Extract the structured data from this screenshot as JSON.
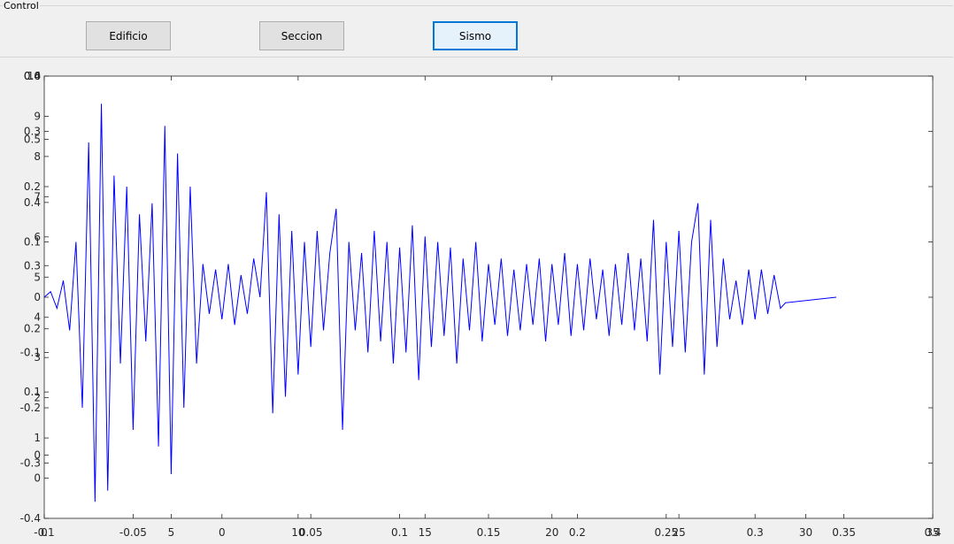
{
  "panel": {
    "title": "Control",
    "buttons": [
      "Edificio",
      "Seccion",
      "Sismo"
    ],
    "focused_button": 2
  },
  "chart_data": [
    {
      "type": "line",
      "xlim": [
        0,
        35
      ],
      "xticks": [
        0,
        5,
        10,
        15,
        20,
        25,
        30,
        35
      ],
      "ylim": [
        -0.4,
        0.4
      ],
      "yticks": [
        -0.4,
        -0.3,
        -0.2,
        -0.1,
        0,
        0.1,
        0.2,
        0.3,
        0.4
      ],
      "box": true,
      "x": [
        0,
        0.25,
        0.5,
        0.75,
        1,
        1.25,
        1.5,
        1.75,
        2,
        2.25,
        2.5,
        2.75,
        3,
        3.25,
        3.5,
        3.75,
        4,
        4.25,
        4.5,
        4.75,
        5,
        5.25,
        5.5,
        5.75,
        6,
        6.25,
        6.5,
        6.75,
        7,
        7.25,
        7.5,
        7.75,
        8,
        8.25,
        8.5,
        8.75,
        9,
        9.25,
        9.5,
        9.75,
        10,
        10.25,
        10.5,
        10.75,
        11,
        11.25,
        11.5,
        11.75,
        12,
        12.25,
        12.5,
        12.75,
        13,
        13.25,
        13.5,
        13.75,
        14,
        14.25,
        14.5,
        14.75,
        15,
        15.25,
        15.5,
        15.75,
        16,
        16.25,
        16.5,
        16.75,
        17,
        17.25,
        17.5,
        17.75,
        18,
        18.25,
        18.5,
        18.75,
        19,
        19.25,
        19.5,
        19.75,
        20,
        20.25,
        20.5,
        20.75,
        21,
        21.25,
        21.5,
        21.75,
        22,
        22.25,
        22.5,
        22.75,
        23,
        23.25,
        23.5,
        23.75,
        24,
        24.25,
        24.5,
        24.75,
        25,
        25.25,
        25.5,
        25.75,
        26,
        26.25,
        26.5,
        26.75,
        27,
        27.25,
        27.5,
        27.75,
        28,
        28.25,
        28.5,
        28.75,
        29,
        29.2,
        31.2
      ],
      "series": [
        {
          "color": "#0000ff",
          "values": [
            0,
            0.01,
            -0.02,
            0.03,
            -0.06,
            0.1,
            -0.2,
            0.28,
            -0.37,
            0.35,
            -0.35,
            0.22,
            -0.12,
            0.2,
            -0.24,
            0.15,
            -0.08,
            0.17,
            -0.27,
            0.31,
            -0.32,
            0.26,
            -0.2,
            0.2,
            -0.12,
            0.06,
            -0.03,
            0.05,
            -0.04,
            0.06,
            -0.05,
            0.04,
            -0.03,
            0.07,
            0,
            0.19,
            -0.21,
            0.15,
            -0.18,
            0.12,
            -0.14,
            0.1,
            -0.09,
            0.12,
            -0.06,
            0.08,
            0.16,
            -0.24,
            0.1,
            -0.06,
            0.08,
            -0.1,
            0.12,
            -0.08,
            0.1,
            -0.12,
            0.09,
            -0.1,
            0.13,
            -0.15,
            0.11,
            -0.09,
            0.1,
            -0.07,
            0.09,
            -0.12,
            0.07,
            -0.06,
            0.1,
            -0.08,
            0.06,
            -0.05,
            0.07,
            -0.07,
            0.05,
            -0.06,
            0.06,
            -0.05,
            0.07,
            -0.08,
            0.06,
            -0.05,
            0.08,
            -0.07,
            0.06,
            -0.06,
            0.07,
            -0.04,
            0.05,
            -0.07,
            0.06,
            -0.05,
            0.08,
            -0.06,
            0.07,
            -0.08,
            0.14,
            -0.14,
            0.1,
            -0.09,
            0.12,
            -0.1,
            0.1,
            0.17,
            -0.14,
            0.14,
            -0.09,
            0.07,
            -0.04,
            0.03,
            -0.05,
            0.05,
            -0.04,
            0.05,
            -0.03,
            0.04,
            -0.02,
            -0.01,
            0
          ]
        }
      ]
    },
    {
      "type": "axes",
      "xlim": [
        -0.1,
        0.4
      ],
      "xticks": [
        -0.1,
        -0.05,
        0,
        0.05,
        0.1,
        0.15,
        0.2,
        0.25,
        0.3,
        0.35,
        0.4
      ],
      "ylim": [
        -0.1,
        0.6
      ],
      "yticks": [
        0,
        0.1,
        0.2,
        0.3,
        0.4,
        0.5,
        0.6
      ]
    },
    {
      "type": "axes",
      "ylim": [
        -1,
        10
      ],
      "yticks": [
        0,
        1,
        2,
        3,
        4,
        5,
        6,
        7,
        8,
        9,
        10
      ]
    }
  ]
}
